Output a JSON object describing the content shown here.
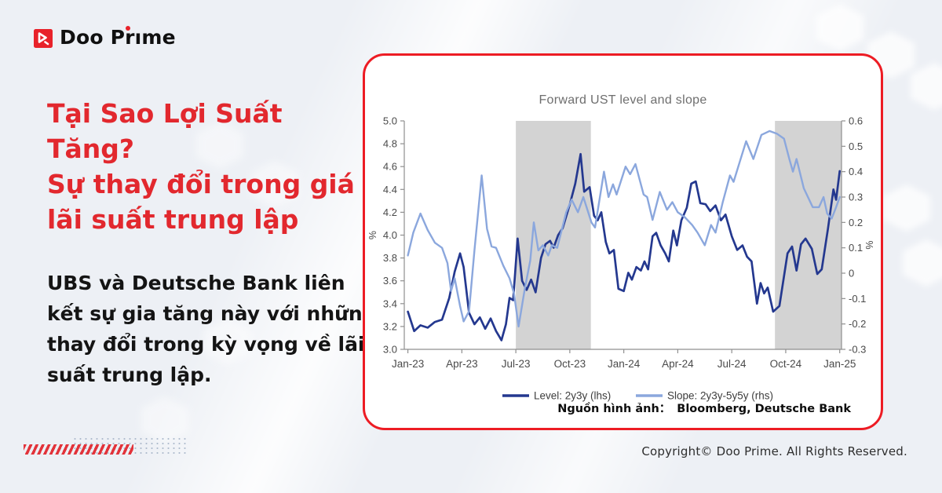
{
  "brand": {
    "name": "Doo Prime"
  },
  "headline": {
    "lines": [
      "Tại Sao Lợi Suất",
      "Tăng?",
      "Sự thay đổi trong giá",
      "lãi suất trung lập"
    ]
  },
  "body": {
    "lines": [
      "UBS và Deutsche Bank liên",
      "kết sự gia tăng này với những",
      "thay đổi trong kỳ vọng về lãi",
      "suất trung lập."
    ]
  },
  "chart_card": {
    "source_label": "Nguồn hình ảnh：",
    "source_value": "Bloomberg, Deutsche Bank"
  },
  "footer": {
    "copyright": "Copyright© Doo Prime. All Rights Reserved."
  },
  "colors": {
    "brand_red": "#e8222a",
    "headline_red": "#e2282e",
    "card_border_red": "#ed1c24",
    "band_gray": "#d3d3d3",
    "axis_gray": "#8f8f8f",
    "tick_text": "#4a4a4a",
    "title_gray": "#6e6e6e",
    "legend_text": "#3d3d3d",
    "level_navy": "#24388f",
    "slope_blue": "#8ba7dd"
  },
  "chart_data": {
    "type": "line",
    "title": "Forward UST level and slope",
    "grid": false,
    "legend_position": "bottom",
    "xlim": [
      -0.2,
      24.1
    ],
    "x_tick_months": [
      0,
      3,
      6,
      9,
      12,
      15,
      18,
      21,
      24
    ],
    "x_tick_labels": [
      "Jan-23",
      "Apr-23",
      "Jul-23",
      "Oct-23",
      "Jan-24",
      "Apr-24",
      "Jul-24",
      "Oct-24",
      "Jan-25"
    ],
    "left_axis": {
      "label": "%",
      "min": 3.0,
      "max": 5.0,
      "tick_values": [
        5.0,
        4.8,
        4.6,
        4.4,
        4.2,
        4.0,
        3.8,
        3.6,
        3.4,
        3.2,
        3.0
      ],
      "tick_labels": [
        "5.0",
        "4.8",
        "4.6",
        "4.4",
        "4.2",
        "4.0",
        "3.8",
        "3.6",
        "3.4",
        "3.2",
        "3.0"
      ]
    },
    "right_axis": {
      "label": "%",
      "min": -0.3,
      "max": 0.6,
      "tick_values": [
        0.6,
        0.5,
        0.4,
        0.3,
        0.2,
        0.1,
        0.0,
        -0.1,
        -0.2,
        -0.3
      ],
      "tick_labels": [
        "0.6",
        "0.5",
        "0.4",
        "0.3",
        "0.2",
        "0.1",
        "0",
        "-0.1",
        "-0.2",
        "-0.3"
      ]
    },
    "shaded_regions": [
      [
        6.0,
        10.17
      ],
      [
        20.4,
        24.1
      ]
    ],
    "series": [
      {
        "name": "Level: 2y3y (lhs)",
        "axis": "left",
        "color": "#24388f",
        "points": [
          [
            0,
            3.33
          ],
          [
            0.35,
            3.16
          ],
          [
            0.7,
            3.21
          ],
          [
            1.1,
            3.19
          ],
          [
            1.5,
            3.24
          ],
          [
            1.9,
            3.26
          ],
          [
            2.3,
            3.45
          ],
          [
            2.6,
            3.68
          ],
          [
            2.9,
            3.84
          ],
          [
            3.1,
            3.72
          ],
          [
            3.4,
            3.32
          ],
          [
            3.7,
            3.22
          ],
          [
            4.0,
            3.28
          ],
          [
            4.3,
            3.18
          ],
          [
            4.6,
            3.27
          ],
          [
            4.9,
            3.16
          ],
          [
            5.2,
            3.08
          ],
          [
            5.45,
            3.22
          ],
          [
            5.65,
            3.45
          ],
          [
            5.85,
            3.43
          ],
          [
            6.1,
            3.97
          ],
          [
            6.35,
            3.6
          ],
          [
            6.6,
            3.52
          ],
          [
            6.85,
            3.61
          ],
          [
            7.1,
            3.5
          ],
          [
            7.4,
            3.8
          ],
          [
            7.65,
            3.92
          ],
          [
            7.9,
            3.95
          ],
          [
            8.1,
            3.89
          ],
          [
            8.35,
            4.0
          ],
          [
            8.6,
            4.06
          ],
          [
            9.0,
            4.27
          ],
          [
            9.3,
            4.45
          ],
          [
            9.6,
            4.71
          ],
          [
            9.8,
            4.38
          ],
          [
            10.1,
            4.42
          ],
          [
            10.35,
            4.17
          ],
          [
            10.55,
            4.13
          ],
          [
            10.75,
            4.2
          ],
          [
            11.0,
            3.94
          ],
          [
            11.2,
            3.84
          ],
          [
            11.45,
            3.87
          ],
          [
            11.7,
            3.53
          ],
          [
            12.0,
            3.51
          ],
          [
            12.25,
            3.67
          ],
          [
            12.45,
            3.61
          ],
          [
            12.7,
            3.72
          ],
          [
            12.95,
            3.69
          ],
          [
            13.15,
            3.77
          ],
          [
            13.35,
            3.7
          ],
          [
            13.6,
            3.99
          ],
          [
            13.8,
            4.02
          ],
          [
            14.05,
            3.91
          ],
          [
            14.3,
            3.84
          ],
          [
            14.5,
            3.77
          ],
          [
            14.75,
            4.04
          ],
          [
            14.95,
            3.91
          ],
          [
            15.2,
            4.13
          ],
          [
            15.5,
            4.24
          ],
          [
            15.75,
            4.45
          ],
          [
            16.0,
            4.47
          ],
          [
            16.25,
            4.28
          ],
          [
            16.55,
            4.27
          ],
          [
            16.8,
            4.21
          ],
          [
            17.1,
            4.26
          ],
          [
            17.4,
            4.13
          ],
          [
            17.65,
            4.18
          ],
          [
            18.0,
            3.99
          ],
          [
            18.3,
            3.87
          ],
          [
            18.6,
            3.91
          ],
          [
            18.85,
            3.81
          ],
          [
            19.1,
            3.77
          ],
          [
            19.4,
            3.4
          ],
          [
            19.6,
            3.58
          ],
          [
            19.8,
            3.49
          ],
          [
            20.0,
            3.54
          ],
          [
            20.3,
            3.33
          ],
          [
            20.65,
            3.38
          ],
          [
            21.1,
            3.84
          ],
          [
            21.35,
            3.9
          ],
          [
            21.6,
            3.69
          ],
          [
            21.85,
            3.92
          ],
          [
            22.1,
            3.97
          ],
          [
            22.45,
            3.88
          ],
          [
            22.75,
            3.66
          ],
          [
            23.0,
            3.7
          ],
          [
            23.35,
            4.06
          ],
          [
            23.65,
            4.4
          ],
          [
            23.8,
            4.31
          ],
          [
            24.0,
            4.56
          ]
        ]
      },
      {
        "name": "Slope: 2y3y-5y5y (rhs)",
        "axis": "right",
        "color": "#8ba7dd",
        "points": [
          [
            0,
            0.07
          ],
          [
            0.3,
            0.16
          ],
          [
            0.7,
            0.235
          ],
          [
            1.1,
            0.17
          ],
          [
            1.5,
            0.12
          ],
          [
            1.9,
            0.1
          ],
          [
            2.2,
            0.04
          ],
          [
            2.4,
            -0.07
          ],
          [
            2.6,
            -0.02
          ],
          [
            2.9,
            -0.13
          ],
          [
            3.1,
            -0.19
          ],
          [
            3.4,
            -0.15
          ],
          [
            3.7,
            0.09
          ],
          [
            4.1,
            0.385
          ],
          [
            4.4,
            0.175
          ],
          [
            4.65,
            0.105
          ],
          [
            4.9,
            0.1
          ],
          [
            5.3,
            0.03
          ],
          [
            5.65,
            -0.02
          ],
          [
            5.9,
            -0.08
          ],
          [
            6.15,
            -0.21
          ],
          [
            6.5,
            -0.06
          ],
          [
            6.8,
            0.05
          ],
          [
            7.0,
            0.2
          ],
          [
            7.25,
            0.09
          ],
          [
            7.5,
            0.11
          ],
          [
            7.8,
            0.07
          ],
          [
            8.0,
            0.11
          ],
          [
            8.3,
            0.1
          ],
          [
            8.8,
            0.24
          ],
          [
            9.1,
            0.29
          ],
          [
            9.45,
            0.24
          ],
          [
            9.75,
            0.3
          ],
          [
            10.2,
            0.2
          ],
          [
            10.4,
            0.18
          ],
          [
            10.9,
            0.4
          ],
          [
            11.15,
            0.3
          ],
          [
            11.4,
            0.35
          ],
          [
            11.6,
            0.31
          ],
          [
            12.1,
            0.42
          ],
          [
            12.35,
            0.39
          ],
          [
            12.65,
            0.43
          ],
          [
            13.1,
            0.31
          ],
          [
            13.3,
            0.3
          ],
          [
            13.6,
            0.21
          ],
          [
            14.0,
            0.32
          ],
          [
            14.4,
            0.25
          ],
          [
            14.7,
            0.28
          ],
          [
            15.0,
            0.24
          ],
          [
            15.4,
            0.22
          ],
          [
            15.8,
            0.19
          ],
          [
            16.1,
            0.16
          ],
          [
            16.5,
            0.11
          ],
          [
            16.85,
            0.19
          ],
          [
            17.1,
            0.16
          ],
          [
            17.5,
            0.28
          ],
          [
            17.9,
            0.385
          ],
          [
            18.1,
            0.36
          ],
          [
            18.45,
            0.44
          ],
          [
            18.8,
            0.52
          ],
          [
            19.2,
            0.45
          ],
          [
            19.65,
            0.545
          ],
          [
            20.1,
            0.56
          ],
          [
            20.5,
            0.55
          ],
          [
            20.9,
            0.53
          ],
          [
            21.2,
            0.45
          ],
          [
            21.4,
            0.4
          ],
          [
            21.6,
            0.45
          ],
          [
            22.0,
            0.335
          ],
          [
            22.5,
            0.26
          ],
          [
            22.85,
            0.26
          ],
          [
            23.1,
            0.3
          ],
          [
            23.3,
            0.235
          ],
          [
            23.55,
            0.215
          ],
          [
            23.8,
            0.26
          ],
          [
            24.0,
            0.3
          ]
        ]
      }
    ]
  }
}
